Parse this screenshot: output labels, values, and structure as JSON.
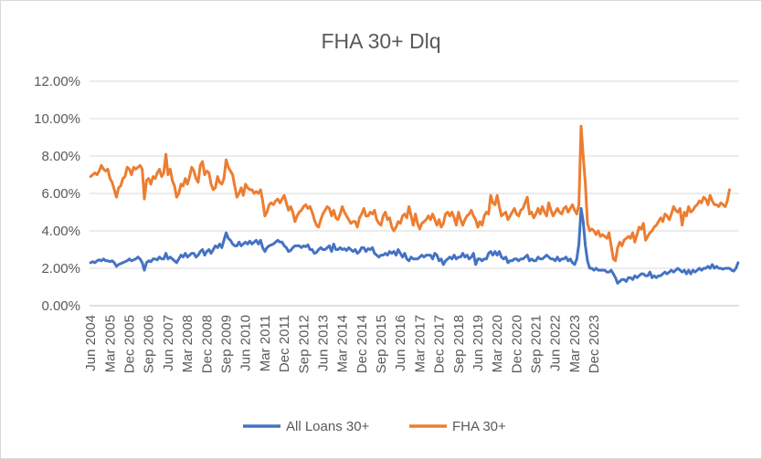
{
  "chart_data": {
    "type": "line",
    "title": "FHA 30+ Dlq",
    "xlabel": "",
    "ylabel": "",
    "ylim": [
      0,
      12
    ],
    "y_unit": "%",
    "y_ticks": [
      "0.00%",
      "2.00%",
      "4.00%",
      "6.00%",
      "8.00%",
      "10.00%",
      "12.00%"
    ],
    "grid": "horizontal",
    "legend_position": "bottom",
    "x_tick_labels": [
      "Jun 2004",
      "Mar 2005",
      "Dec 2005",
      "Sep 2006",
      "Jun 2007",
      "Mar 2008",
      "Dec 2008",
      "Sep 2009",
      "Jun 2010",
      "Mar 2011",
      "Dec 2011",
      "Sep 2012",
      "Jun 2013",
      "Mar 2014",
      "Dec 2014",
      "Sep 2015",
      "Jun 2016",
      "Mar 2017",
      "Dec 2017",
      "Sep 2018",
      "Jun 2019",
      "Mar 2020",
      "Dec 2020",
      "Sep 2021",
      "Jun 2022",
      "Mar 2023",
      "Dec 2023"
    ],
    "x_start": "Jun 2004",
    "x_end": "Jun 2024",
    "series": [
      {
        "name": "All Loans 30+",
        "color": "#4472c4",
        "values": [
          2.3,
          2.35,
          2.3,
          2.4,
          2.45,
          2.4,
          2.5,
          2.4,
          2.4,
          2.35,
          2.4,
          2.3,
          2.1,
          2.2,
          2.25,
          2.3,
          2.35,
          2.4,
          2.5,
          2.4,
          2.45,
          2.5,
          2.6,
          2.5,
          2.3,
          1.9,
          2.3,
          2.4,
          2.35,
          2.5,
          2.5,
          2.45,
          2.6,
          2.5,
          2.5,
          2.8,
          2.5,
          2.6,
          2.5,
          2.4,
          2.3,
          2.5,
          2.7,
          2.6,
          2.8,
          2.6,
          2.7,
          2.8,
          2.8,
          2.6,
          2.7,
          2.9,
          3.0,
          2.7,
          2.9,
          3.0,
          2.8,
          3.0,
          3.2,
          3.1,
          3.3,
          3.1,
          3.5,
          3.9,
          3.6,
          3.5,
          3.3,
          3.2,
          3.2,
          3.4,
          3.2,
          3.3,
          3.4,
          3.3,
          3.45,
          3.3,
          3.4,
          3.5,
          3.3,
          3.5,
          3.1,
          2.9,
          3.1,
          3.2,
          3.25,
          3.3,
          3.4,
          3.5,
          3.4,
          3.4,
          3.2,
          3.1,
          2.9,
          2.95,
          3.1,
          3.2,
          3.2,
          3.2,
          3.1,
          3.2,
          3.15,
          3.25,
          3.0,
          3.0,
          2.8,
          2.85,
          3.0,
          3.1,
          3.0,
          3.0,
          3.1,
          3.2,
          2.9,
          3.3,
          3.0,
          3.0,
          3.1,
          3.0,
          3.05,
          2.95,
          3.1,
          3.0,
          2.9,
          3.0,
          2.8,
          2.9,
          3.1,
          3.1,
          2.9,
          3.05,
          3.0,
          3.1,
          2.8,
          2.7,
          2.6,
          2.7,
          2.7,
          2.8,
          2.7,
          2.9,
          2.8,
          2.9,
          2.7,
          3.0,
          2.8,
          2.6,
          2.8,
          2.5,
          2.4,
          2.6,
          2.5,
          2.5,
          2.5,
          2.6,
          2.7,
          2.6,
          2.7,
          2.7,
          2.7,
          2.5,
          2.8,
          2.7,
          2.4,
          2.5,
          2.2,
          2.4,
          2.5,
          2.6,
          2.5,
          2.7,
          2.5,
          2.6,
          2.6,
          2.8,
          2.6,
          2.7,
          2.5,
          2.6,
          2.8,
          2.2,
          2.5,
          2.5,
          2.4,
          2.5,
          2.5,
          2.8,
          2.9,
          2.7,
          2.9,
          2.7,
          2.9,
          2.6,
          2.5,
          2.6,
          2.3,
          2.4,
          2.4,
          2.5,
          2.5,
          2.4,
          2.5,
          2.5,
          2.6,
          2.7,
          2.4,
          2.5,
          2.4,
          2.4,
          2.6,
          2.5,
          2.5,
          2.6,
          2.7,
          2.6,
          2.5,
          2.5,
          2.4,
          2.6,
          2.4,
          2.5,
          2.5,
          2.6,
          2.4,
          2.5,
          2.3,
          2.2,
          2.5,
          3.3,
          5.2,
          4.5,
          3.2,
          2.4,
          2.0,
          2.0,
          1.9,
          2.0,
          1.9,
          1.9,
          1.9,
          1.9,
          1.8,
          1.8,
          1.9,
          1.7,
          1.5,
          1.2,
          1.3,
          1.4,
          1.4,
          1.3,
          1.5,
          1.5,
          1.4,
          1.6,
          1.5,
          1.6,
          1.7,
          1.7,
          1.6,
          1.6,
          1.8,
          1.5,
          1.6,
          1.5,
          1.6,
          1.6,
          1.7,
          1.8,
          1.7,
          1.8,
          1.9,
          1.8,
          1.9,
          2.0,
          1.9,
          1.8,
          1.9,
          1.7,
          1.9,
          1.7,
          1.9,
          1.8,
          1.9,
          2.0,
          1.9,
          2.0,
          2.0,
          2.1,
          2.0,
          2.2,
          2.0,
          2.1,
          2.0,
          2.0,
          1.95,
          2.0,
          2.0,
          2.0,
          1.9,
          1.85,
          2.0,
          2.3
        ]
      },
      {
        "name": "FHA 30+",
        "color": "#ed7d31",
        "values": [
          6.9,
          7.0,
          7.1,
          7.0,
          7.2,
          7.5,
          7.3,
          7.2,
          7.3,
          6.8,
          6.6,
          6.2,
          5.8,
          6.3,
          6.4,
          6.8,
          6.9,
          7.4,
          7.3,
          7.0,
          7.4,
          7.3,
          7.4,
          7.5,
          7.3,
          5.7,
          6.7,
          6.8,
          6.5,
          6.9,
          6.8,
          7.1,
          7.3,
          6.9,
          7.1,
          8.1,
          7.0,
          7.3,
          6.7,
          6.4,
          5.8,
          6.0,
          6.5,
          6.4,
          6.8,
          6.5,
          6.9,
          7.4,
          7.2,
          6.8,
          6.6,
          7.5,
          7.7,
          7.0,
          7.2,
          7.1,
          6.5,
          6.2,
          6.3,
          6.9,
          6.6,
          6.5,
          6.8,
          7.8,
          7.4,
          7.2,
          7.0,
          6.4,
          5.8,
          6.0,
          6.3,
          5.9,
          6.5,
          6.3,
          6.2,
          6.2,
          6.0,
          6.1,
          6.0,
          6.2,
          5.6,
          4.8,
          5.0,
          5.4,
          5.5,
          5.4,
          5.6,
          5.7,
          5.5,
          5.7,
          5.9,
          5.5,
          5.1,
          5.3,
          5.0,
          4.5,
          4.8,
          5.0,
          5.1,
          5.3,
          5.4,
          5.2,
          5.3,
          5.0,
          4.6,
          4.3,
          4.2,
          4.6,
          4.9,
          5.1,
          5.3,
          5.2,
          4.8,
          5.1,
          4.7,
          4.6,
          4.9,
          5.3,
          5.0,
          4.8,
          4.6,
          4.4,
          4.5,
          4.5,
          4.2,
          4.7,
          4.9,
          5.2,
          4.8,
          4.8,
          5.0,
          4.9,
          5.1,
          4.6,
          4.4,
          4.3,
          4.8,
          5.0,
          4.6,
          4.7,
          4.2,
          4.0,
          4.2,
          4.5,
          4.4,
          4.8,
          4.9,
          4.7,
          5.3,
          4.8,
          4.3,
          4.9,
          4.4,
          4.1,
          4.4,
          4.5,
          4.6,
          4.8,
          4.6,
          4.9,
          4.6,
          4.3,
          4.6,
          4.2,
          4.4,
          4.9,
          5.0,
          4.8,
          5.0,
          4.7,
          4.3,
          5.0,
          4.6,
          4.3,
          4.6,
          4.8,
          4.9,
          5.1,
          4.8,
          4.6,
          4.2,
          4.5,
          4.3,
          4.8,
          5.0,
          4.9,
          5.9,
          5.5,
          5.4,
          5.9,
          5.3,
          4.8,
          4.9,
          5.0,
          4.6,
          4.8,
          5.0,
          5.2,
          4.9,
          4.8,
          5.1,
          5.2,
          5.5,
          5.8,
          4.9,
          5.0,
          4.7,
          4.9,
          5.2,
          4.9,
          5.3,
          5.0,
          4.8,
          5.5,
          5.1,
          4.8,
          5.0,
          5.2,
          5.0,
          4.9,
          5.2,
          5.3,
          5.0,
          5.2,
          5.4,
          5.1,
          4.9,
          5.4,
          9.6,
          8.0,
          6.5,
          4.4,
          4.0,
          4.1,
          4.0,
          3.8,
          4.0,
          3.7,
          3.8,
          3.7,
          3.6,
          3.9,
          3.2,
          2.5,
          2.4,
          3.1,
          3.4,
          3.2,
          3.5,
          3.6,
          3.7,
          3.6,
          3.9,
          3.4,
          3.8,
          4.2,
          4.1,
          4.4,
          3.5,
          3.7,
          3.9,
          4.0,
          4.2,
          4.3,
          4.5,
          4.7,
          4.5,
          4.9,
          4.8,
          4.6,
          4.9,
          5.3,
          5.1,
          5.0,
          5.2,
          4.3,
          5.0,
          4.8,
          5.3,
          5.0,
          5.1,
          5.3,
          5.4,
          5.6,
          5.5,
          5.8,
          5.7,
          5.4,
          5.9,
          5.6,
          5.4,
          5.4,
          5.3,
          5.5,
          5.4,
          5.3,
          5.6,
          6.2
        ]
      }
    ]
  }
}
